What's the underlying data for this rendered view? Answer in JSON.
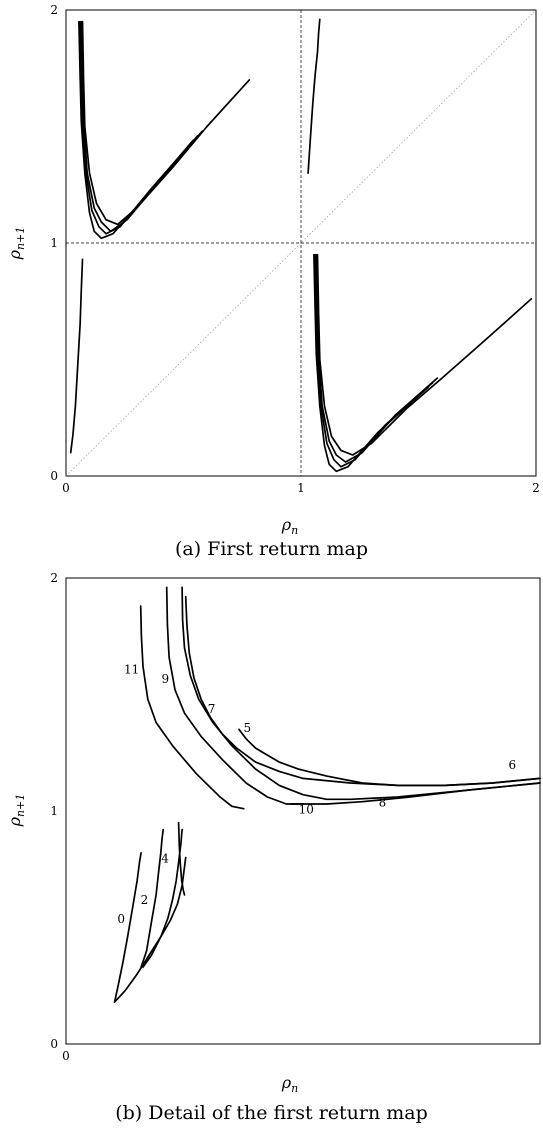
{
  "chart_data": [
    {
      "type": "scatter",
      "caption": "(a) First return map",
      "xlabel_base": "ρ",
      "xlabel_sub": "n",
      "ylabel_base": "ρ",
      "ylabel_sub": "n+1",
      "xlim": [
        0,
        2
      ],
      "ylim": [
        0,
        2
      ],
      "xticks": [
        "0",
        "1",
        "2"
      ],
      "yticks": [
        "0",
        "1",
        "2"
      ],
      "reference_lines": {
        "diagonal": true,
        "x": 1,
        "y": 1,
        "style": "dashed"
      },
      "series": [
        {
          "branch": "upper-left",
          "x": [
            0.07,
            0.075,
            0.08,
            0.1,
            0.13,
            0.17,
            0.22,
            0.3,
            0.45,
            0.6,
            0.78
          ],
          "y": [
            1.95,
            1.7,
            1.5,
            1.3,
            1.17,
            1.1,
            1.08,
            1.15,
            1.32,
            1.5,
            1.7
          ]
        },
        {
          "branch": "upper-left",
          "x": [
            0.065,
            0.07,
            0.075,
            0.09,
            0.12,
            0.15,
            0.19,
            0.26,
            0.4,
            0.58
          ],
          "y": [
            1.95,
            1.72,
            1.52,
            1.3,
            1.15,
            1.09,
            1.05,
            1.1,
            1.27,
            1.48
          ]
        },
        {
          "branch": "upper-left",
          "x": [
            0.06,
            0.065,
            0.07,
            0.085,
            0.11,
            0.14,
            0.17,
            0.23,
            0.36,
            0.56
          ],
          "y": [
            1.95,
            1.72,
            1.52,
            1.3,
            1.14,
            1.07,
            1.04,
            1.07,
            1.23,
            1.46
          ]
        },
        {
          "branch": "upper-left",
          "x": [
            0.055,
            0.06,
            0.065,
            0.08,
            0.1,
            0.12,
            0.15,
            0.2,
            0.33,
            0.54
          ],
          "y": [
            1.95,
            1.72,
            1.52,
            1.3,
            1.13,
            1.05,
            1.02,
            1.04,
            1.19,
            1.44
          ]
        },
        {
          "branch": "upper-middle",
          "x": [
            1.03,
            1.04,
            1.05,
            1.06,
            1.07,
            1.075,
            1.08
          ],
          "y": [
            1.3,
            1.45,
            1.6,
            1.72,
            1.82,
            1.9,
            1.96
          ]
        },
        {
          "branch": "lower-left",
          "x": [
            0.02,
            0.03,
            0.04,
            0.05,
            0.06,
            0.065,
            0.07
          ],
          "y": [
            0.1,
            0.18,
            0.3,
            0.48,
            0.65,
            0.8,
            0.93
          ]
        },
        {
          "branch": "lower-right",
          "x": [
            1.07,
            1.075,
            1.08,
            1.1,
            1.13,
            1.17,
            1.22,
            1.3,
            1.45,
            1.6,
            1.78,
            1.98
          ],
          "y": [
            0.95,
            0.7,
            0.5,
            0.3,
            0.17,
            0.11,
            0.09,
            0.14,
            0.29,
            0.42,
            0.58,
            0.76
          ]
        },
        {
          "branch": "lower-right",
          "x": [
            1.065,
            1.07,
            1.075,
            1.09,
            1.12,
            1.15,
            1.19,
            1.26,
            1.4,
            1.58
          ],
          "y": [
            0.95,
            0.72,
            0.52,
            0.3,
            0.15,
            0.09,
            0.06,
            0.1,
            0.26,
            0.42
          ]
        },
        {
          "branch": "lower-right",
          "x": [
            1.06,
            1.065,
            1.07,
            1.085,
            1.11,
            1.14,
            1.17,
            1.23,
            1.36,
            1.56
          ],
          "y": [
            0.95,
            0.72,
            0.52,
            0.3,
            0.14,
            0.07,
            0.04,
            0.07,
            0.22,
            0.4
          ]
        },
        {
          "branch": "lower-right",
          "x": [
            1.055,
            1.06,
            1.065,
            1.08,
            1.1,
            1.12,
            1.15,
            1.2,
            1.33,
            1.54
          ],
          "y": [
            0.95,
            0.72,
            0.52,
            0.3,
            0.13,
            0.05,
            0.02,
            0.04,
            0.19,
            0.38
          ]
        }
      ]
    },
    {
      "type": "scatter",
      "caption": "(b) Detail of the first return map",
      "xlabel_base": "ρ",
      "xlabel_sub": "n",
      "ylabel_base": "ρ",
      "ylabel_sub": "n+1",
      "xlim": [
        0,
        0.2
      ],
      "ylim": [
        0,
        2
      ],
      "xticks": [
        "0"
      ],
      "yticks": [
        "0",
        "1",
        "2"
      ],
      "annotations": [
        {
          "text": "0",
          "x": 0.0233,
          "y": 0.52
        },
        {
          "text": "2",
          "x": 0.0331,
          "y": 0.6
        },
        {
          "text": "4",
          "x": 0.0418,
          "y": 0.78
        },
        {
          "text": "5",
          "x": 0.0765,
          "y": 1.34
        },
        {
          "text": "6",
          "x": 0.1883,
          "y": 1.18
        },
        {
          "text": "7",
          "x": 0.0614,
          "y": 1.42
        },
        {
          "text": "8",
          "x": 0.1335,
          "y": 1.02
        },
        {
          "text": "9",
          "x": 0.0419,
          "y": 1.55
        },
        {
          "text": "10",
          "x": 0.1014,
          "y": 0.99
        },
        {
          "text": "11",
          "x": 0.0277,
          "y": 1.59
        }
      ],
      "series": [
        {
          "label": "0",
          "x": [
            0.0205,
            0.022,
            0.024,
            0.026,
            0.028,
            0.03,
            0.031,
            0.0317
          ],
          "y": [
            0.18,
            0.25,
            0.35,
            0.46,
            0.58,
            0.7,
            0.78,
            0.82
          ]
        },
        {
          "label": "2",
          "x": [
            0.0317,
            0.034,
            0.036,
            0.038,
            0.039,
            0.04,
            0.0405,
            0.041
          ],
          "y": [
            0.33,
            0.4,
            0.52,
            0.64,
            0.73,
            0.82,
            0.88,
            0.92
          ]
        },
        {
          "label": "4",
          "x": [
            0.0325,
            0.036,
            0.04,
            0.043,
            0.045,
            0.0465,
            0.0475,
            0.0485,
            0.049
          ],
          "y": [
            0.33,
            0.38,
            0.46,
            0.54,
            0.62,
            0.7,
            0.78,
            0.86,
            0.92
          ]
        },
        {
          "label": "4",
          "x": [
            0.0475,
            0.0478,
            0.0482,
            0.0488,
            0.0495,
            0.05
          ],
          "y": [
            0.95,
            0.85,
            0.78,
            0.7,
            0.66,
            0.64
          ]
        },
        {
          "label": "4",
          "x": [
            0.0205,
            0.025,
            0.03,
            0.035,
            0.04,
            0.044,
            0.047,
            0.049,
            0.0505
          ],
          "y": [
            0.18,
            0.23,
            0.3,
            0.38,
            0.46,
            0.53,
            0.6,
            0.68,
            0.8
          ]
        },
        {
          "label": "11",
          "x": [
            0.0315,
            0.0318,
            0.0325,
            0.0345,
            0.038,
            0.045,
            0.055,
            0.065,
            0.07,
            0.075
          ],
          "y": [
            1.88,
            1.75,
            1.62,
            1.48,
            1.38,
            1.28,
            1.16,
            1.06,
            1.02,
            1.01
          ]
        },
        {
          "label": "9",
          "x": [
            0.0425,
            0.0428,
            0.0435,
            0.046,
            0.05,
            0.057,
            0.066,
            0.076,
            0.085,
            0.093,
            0.1
          ],
          "y": [
            1.96,
            1.8,
            1.66,
            1.52,
            1.42,
            1.32,
            1.22,
            1.12,
            1.06,
            1.03,
            1.03
          ]
        },
        {
          "label": "10",
          "x": [
            0.095,
            0.1,
            0.11,
            0.125,
            0.145,
            0.17,
            0.2
          ],
          "y": [
            1.03,
            1.03,
            1.03,
            1.04,
            1.06,
            1.09,
            1.12
          ]
        },
        {
          "label": "7",
          "x": [
            0.049,
            0.0492,
            0.05,
            0.0525,
            0.056,
            0.062,
            0.07,
            0.08,
            0.09,
            0.1,
            0.11,
            0.12
          ],
          "y": [
            1.96,
            1.82,
            1.7,
            1.58,
            1.48,
            1.38,
            1.28,
            1.18,
            1.11,
            1.07,
            1.05,
            1.05
          ]
        },
        {
          "label": "8",
          "x": [
            0.12,
            0.14,
            0.16,
            0.18,
            0.2
          ],
          "y": [
            1.05,
            1.06,
            1.08,
            1.1,
            1.12
          ]
        },
        {
          "label": "5",
          "x": [
            0.0505,
            0.051,
            0.052,
            0.054,
            0.057,
            0.061,
            0.066,
            0.072,
            0.08,
            0.09,
            0.1
          ],
          "y": [
            1.92,
            1.8,
            1.68,
            1.57,
            1.48,
            1.4,
            1.33,
            1.27,
            1.21,
            1.17,
            1.14
          ]
        },
        {
          "label": "6",
          "x": [
            0.1,
            0.12,
            0.14,
            0.16,
            0.18,
            0.2
          ],
          "y": [
            1.14,
            1.12,
            1.11,
            1.11,
            1.12,
            1.14
          ]
        },
        {
          "label": "5",
          "x": [
            0.073,
            0.076,
            0.08,
            0.085,
            0.09,
            0.098,
            0.11,
            0.125,
            0.14,
            0.16,
            0.18,
            0.2
          ],
          "y": [
            1.35,
            1.31,
            1.27,
            1.24,
            1.21,
            1.18,
            1.15,
            1.12,
            1.11,
            1.11,
            1.12,
            1.14
          ]
        }
      ]
    }
  ]
}
